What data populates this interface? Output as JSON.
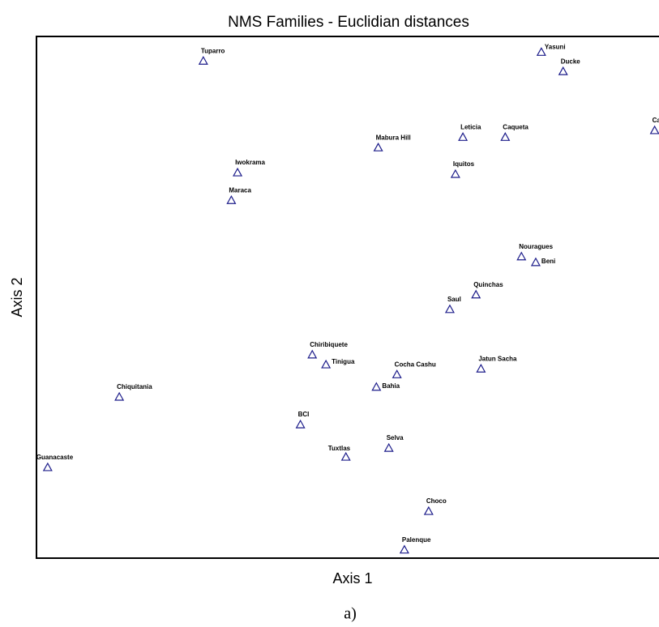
{
  "chart_data": {
    "type": "scatter",
    "title": "NMS  Families - Euclidian distances",
    "x_label": "Axis 1",
    "y_label": "Axis 2",
    "caption": "a)",
    "xlim": [
      0,
      100
    ],
    "ylim": [
      0,
      100
    ],
    "color": "#1c1c8a",
    "labels": [
      "Tuparro",
      "Yasuni",
      "Ducke",
      "Capar",
      "Mabura Hill",
      "Leticia",
      "Caqueta",
      "Iwokrama",
      "Iquitos",
      "Maraca",
      "Nouragues",
      "Beni",
      "Quinchas",
      "Saul",
      "Chiribiquete",
      "Tinigua",
      "Cocha Cashu",
      "Jatun Sacha",
      "Bahia",
      "Chiquitania",
      "BCI",
      "Selva",
      "Tuxtlas",
      "Guanacaste",
      "Choco",
      "Palenque"
    ],
    "x": [
      26.8,
      81.1,
      84.6,
      99.3,
      54.9,
      68.5,
      75.3,
      32.3,
      67.3,
      31.3,
      77.9,
      80.2,
      70.6,
      66.4,
      44.3,
      46.5,
      57.9,
      71.4,
      54.6,
      13.3,
      42.4,
      56.6,
      49.7,
      1.8,
      63.0,
      59.1
    ],
    "y": [
      95.3,
      97.0,
      93.3,
      82.0,
      78.7,
      80.7,
      80.7,
      73.9,
      73.6,
      68.6,
      57.8,
      56.7,
      50.5,
      47.7,
      39.0,
      37.1,
      35.2,
      36.3,
      32.8,
      30.9,
      25.6,
      21.1,
      19.4,
      17.4,
      9.0,
      1.6
    ]
  }
}
